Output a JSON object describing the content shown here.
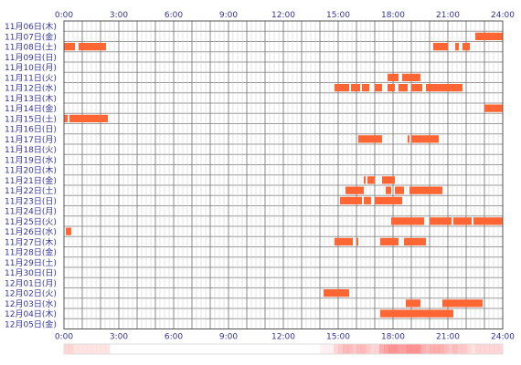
{
  "chart_data": {
    "type": "heatmap",
    "xlim": [
      0,
      24
    ],
    "x_ticks": [
      "0:00",
      "3:00",
      "6:00",
      "9:00",
      "12:00",
      "15:00",
      "18:00",
      "21:00",
      "24:00"
    ],
    "grid": true,
    "bar_color": "#ff6633",
    "heat_color": "#ff8080",
    "rows": [
      {
        "label": "11月06日(木)",
        "segments": []
      },
      {
        "label": "11月07日(金)",
        "segments": [
          [
            22.5,
            24
          ]
        ]
      },
      {
        "label": "11月08日(土)",
        "segments": [
          [
            0,
            0.6
          ],
          [
            0.8,
            2.3
          ],
          [
            20.2,
            21.0
          ],
          [
            21.4,
            21.6
          ],
          [
            21.8,
            22.2
          ]
        ]
      },
      {
        "label": "11月09日(日)",
        "segments": []
      },
      {
        "label": "11月10日(月)",
        "segments": []
      },
      {
        "label": "11月11日(火)",
        "segments": [
          [
            17.7,
            18.3
          ],
          [
            18.5,
            19.5
          ]
        ]
      },
      {
        "label": "11月12日(水)",
        "segments": [
          [
            14.8,
            15.6
          ],
          [
            15.7,
            16.2
          ],
          [
            16.3,
            16.7
          ],
          [
            17.0,
            17.4
          ],
          [
            17.7,
            18.1
          ],
          [
            18.3,
            18.8
          ],
          [
            19.0,
            19.6
          ],
          [
            19.8,
            21.8
          ]
        ]
      },
      {
        "label": "11月13日(木)",
        "segments": []
      },
      {
        "label": "11月14日(金)",
        "segments": [
          [
            23.0,
            24
          ]
        ]
      },
      {
        "label": "11月15日(土)",
        "segments": [
          [
            0,
            0.2
          ],
          [
            0.3,
            2.4
          ]
        ]
      },
      {
        "label": "11月16日(日)",
        "segments": []
      },
      {
        "label": "11月17日(月)",
        "segments": [
          [
            16.1,
            17.4
          ],
          [
            18.8,
            18.9
          ],
          [
            19.0,
            20.5
          ]
        ]
      },
      {
        "label": "11月18日(火)",
        "segments": []
      },
      {
        "label": "11月19日(水)",
        "segments": []
      },
      {
        "label": "11月20日(木)",
        "segments": []
      },
      {
        "label": "11月21日(金)",
        "segments": [
          [
            16.4,
            16.5
          ],
          [
            16.6,
            17.0
          ],
          [
            17.4,
            18.1
          ]
        ]
      },
      {
        "label": "11月22日(土)",
        "segments": [
          [
            15.4,
            16.4
          ],
          [
            17.6,
            17.9
          ],
          [
            18.1,
            18.6
          ],
          [
            18.9,
            20.7
          ]
        ]
      },
      {
        "label": "11月23日(日)",
        "segments": [
          [
            15.1,
            16.3
          ],
          [
            16.4,
            16.8
          ],
          [
            17.0,
            18.5
          ]
        ]
      },
      {
        "label": "11月24日(月)",
        "segments": []
      },
      {
        "label": "11月25日(火)",
        "segments": [
          [
            17.9,
            19.7
          ],
          [
            20.0,
            21.2
          ],
          [
            21.3,
            22.3
          ],
          [
            22.4,
            24
          ]
        ]
      },
      {
        "label": "11月26日(水)",
        "segments": [
          [
            0.1,
            0.4
          ]
        ]
      },
      {
        "label": "11月27日(木)",
        "segments": [
          [
            14.8,
            15.8
          ],
          [
            16.0,
            16.1
          ],
          [
            17.3,
            18.3
          ],
          [
            18.6,
            19.8
          ]
        ]
      },
      {
        "label": "11月28日(金)",
        "segments": []
      },
      {
        "label": "11月29日(土)",
        "segments": []
      },
      {
        "label": "11月30日(日)",
        "segments": []
      },
      {
        "label": "12月01日(月)",
        "segments": []
      },
      {
        "label": "12月02日(火)",
        "segments": [
          [
            14.2,
            15.6
          ]
        ]
      },
      {
        "label": "12月03日(水)",
        "segments": [
          [
            18.7,
            19.5
          ],
          [
            20.7,
            22.9
          ]
        ]
      },
      {
        "label": "12月04日(木)",
        "segments": [
          [
            17.3,
            21.3
          ]
        ]
      },
      {
        "label": "12月05日(金)",
        "segments": []
      }
    ]
  }
}
